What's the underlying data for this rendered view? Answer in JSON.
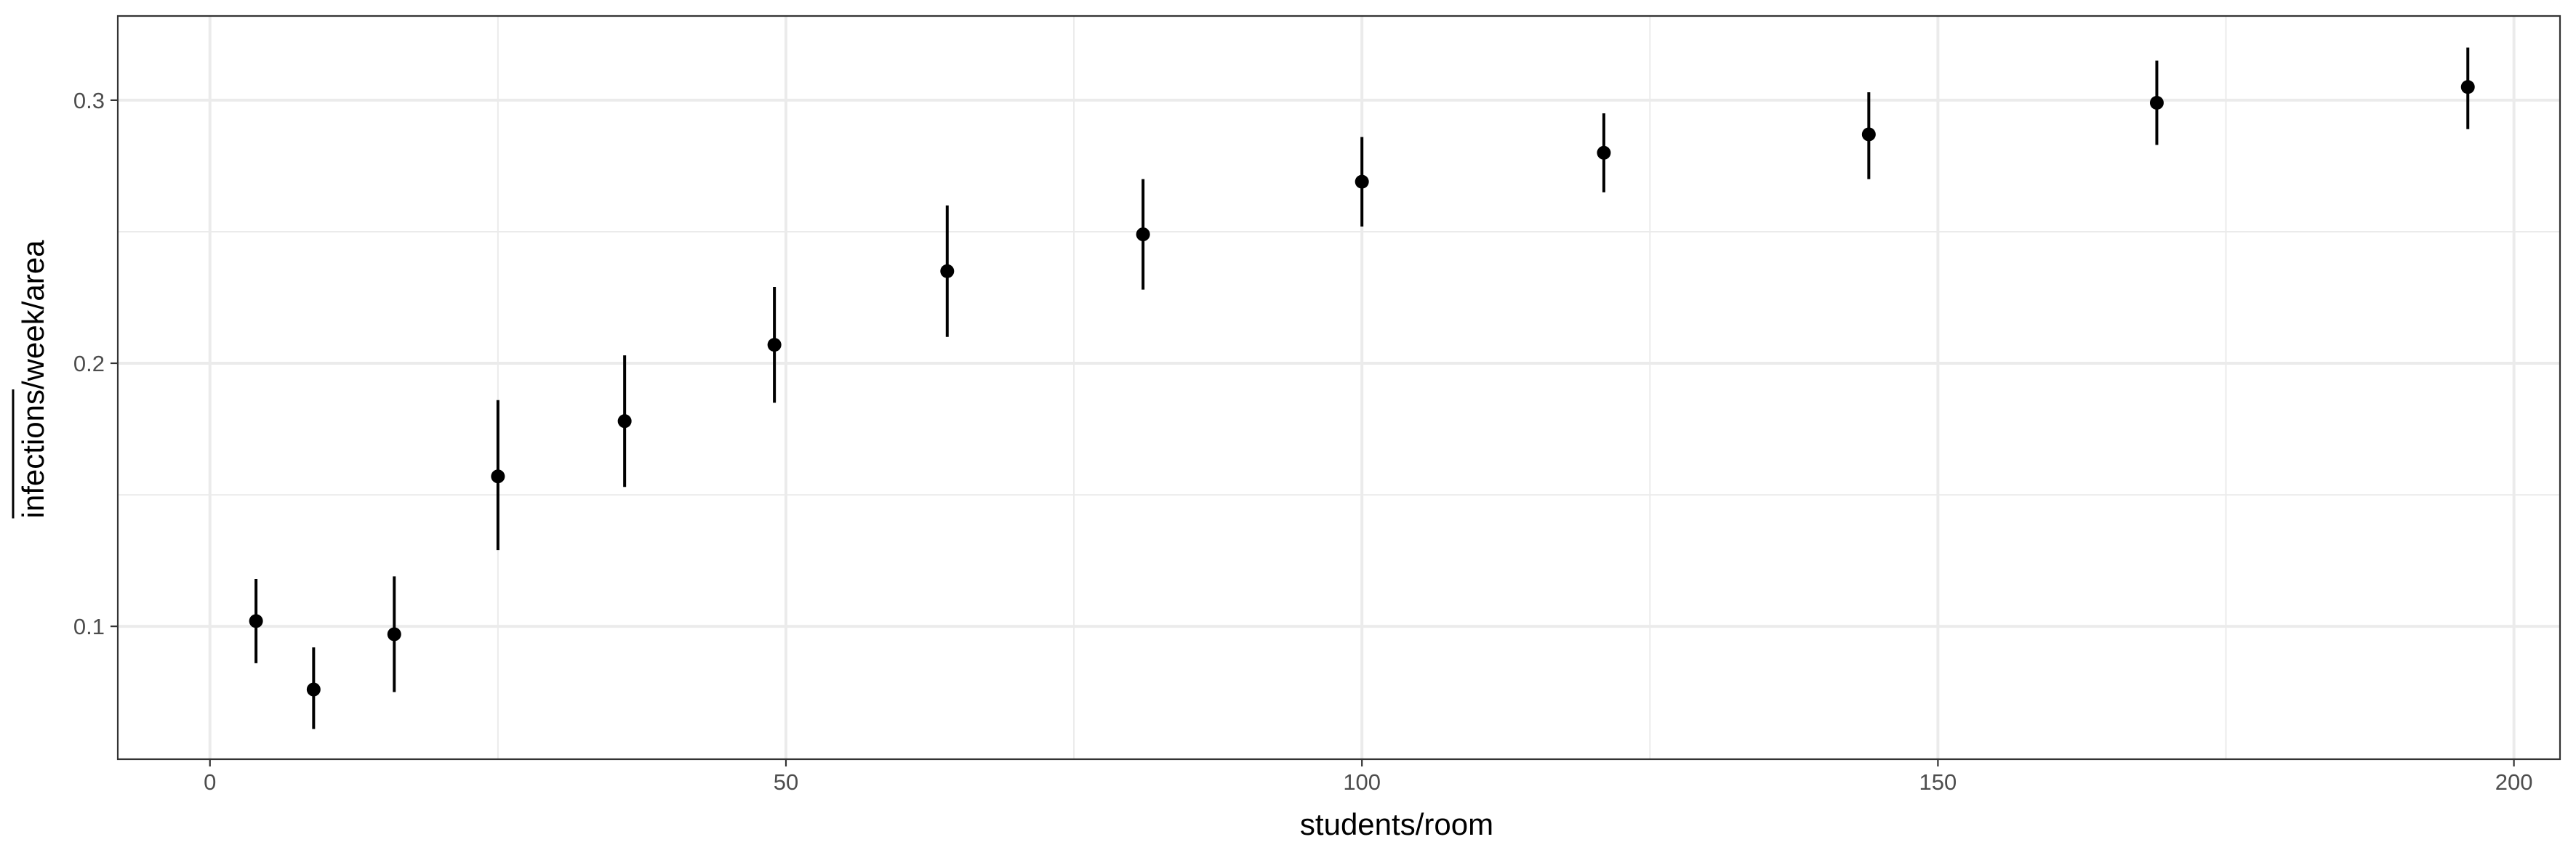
{
  "chart_data": {
    "type": "scatter",
    "xlabel": "students/room",
    "ylabel": "infections/week/area",
    "ylabel_overline_part": "infections",
    "ylabel_rest": "/week/area",
    "xlim": [
      -8,
      204
    ],
    "ylim": [
      0.0495,
      0.332
    ],
    "x_ticks": [
      0,
      50,
      100,
      150,
      200
    ],
    "x_tick_labels": [
      "0",
      "50",
      "100",
      "150",
      "200"
    ],
    "y_ticks": [
      0.1,
      0.2,
      0.3
    ],
    "y_tick_labels": [
      "0.1",
      "0.2",
      "0.3"
    ],
    "x_minor_ticks": [
      25,
      75,
      125,
      175
    ],
    "y_minor_ticks": [
      0.15,
      0.25
    ],
    "grid": true,
    "legend": "none",
    "colors": {
      "point": "#000000",
      "grid": "#ebebeb",
      "panel_border": "#333333",
      "tick_label": "#4d4d4d"
    },
    "points": [
      {
        "x": 4,
        "y": 0.102,
        "ymin": 0.086,
        "ymax": 0.118
      },
      {
        "x": 9,
        "y": 0.076,
        "ymin": 0.061,
        "ymax": 0.092
      },
      {
        "x": 16,
        "y": 0.097,
        "ymin": 0.075,
        "ymax": 0.119
      },
      {
        "x": 25,
        "y": 0.157,
        "ymin": 0.129,
        "ymax": 0.186
      },
      {
        "x": 36,
        "y": 0.178,
        "ymin": 0.153,
        "ymax": 0.203
      },
      {
        "x": 49,
        "y": 0.207,
        "ymin": 0.185,
        "ymax": 0.229
      },
      {
        "x": 64,
        "y": 0.235,
        "ymin": 0.21,
        "ymax": 0.26
      },
      {
        "x": 81,
        "y": 0.249,
        "ymin": 0.228,
        "ymax": 0.27
      },
      {
        "x": 100,
        "y": 0.269,
        "ymin": 0.252,
        "ymax": 0.286
      },
      {
        "x": 121,
        "y": 0.28,
        "ymin": 0.265,
        "ymax": 0.295
      },
      {
        "x": 144,
        "y": 0.287,
        "ymin": 0.27,
        "ymax": 0.303
      },
      {
        "x": 169,
        "y": 0.299,
        "ymin": 0.283,
        "ymax": 0.315
      },
      {
        "x": 196,
        "y": 0.305,
        "ymin": 0.289,
        "ymax": 0.32
      }
    ]
  }
}
